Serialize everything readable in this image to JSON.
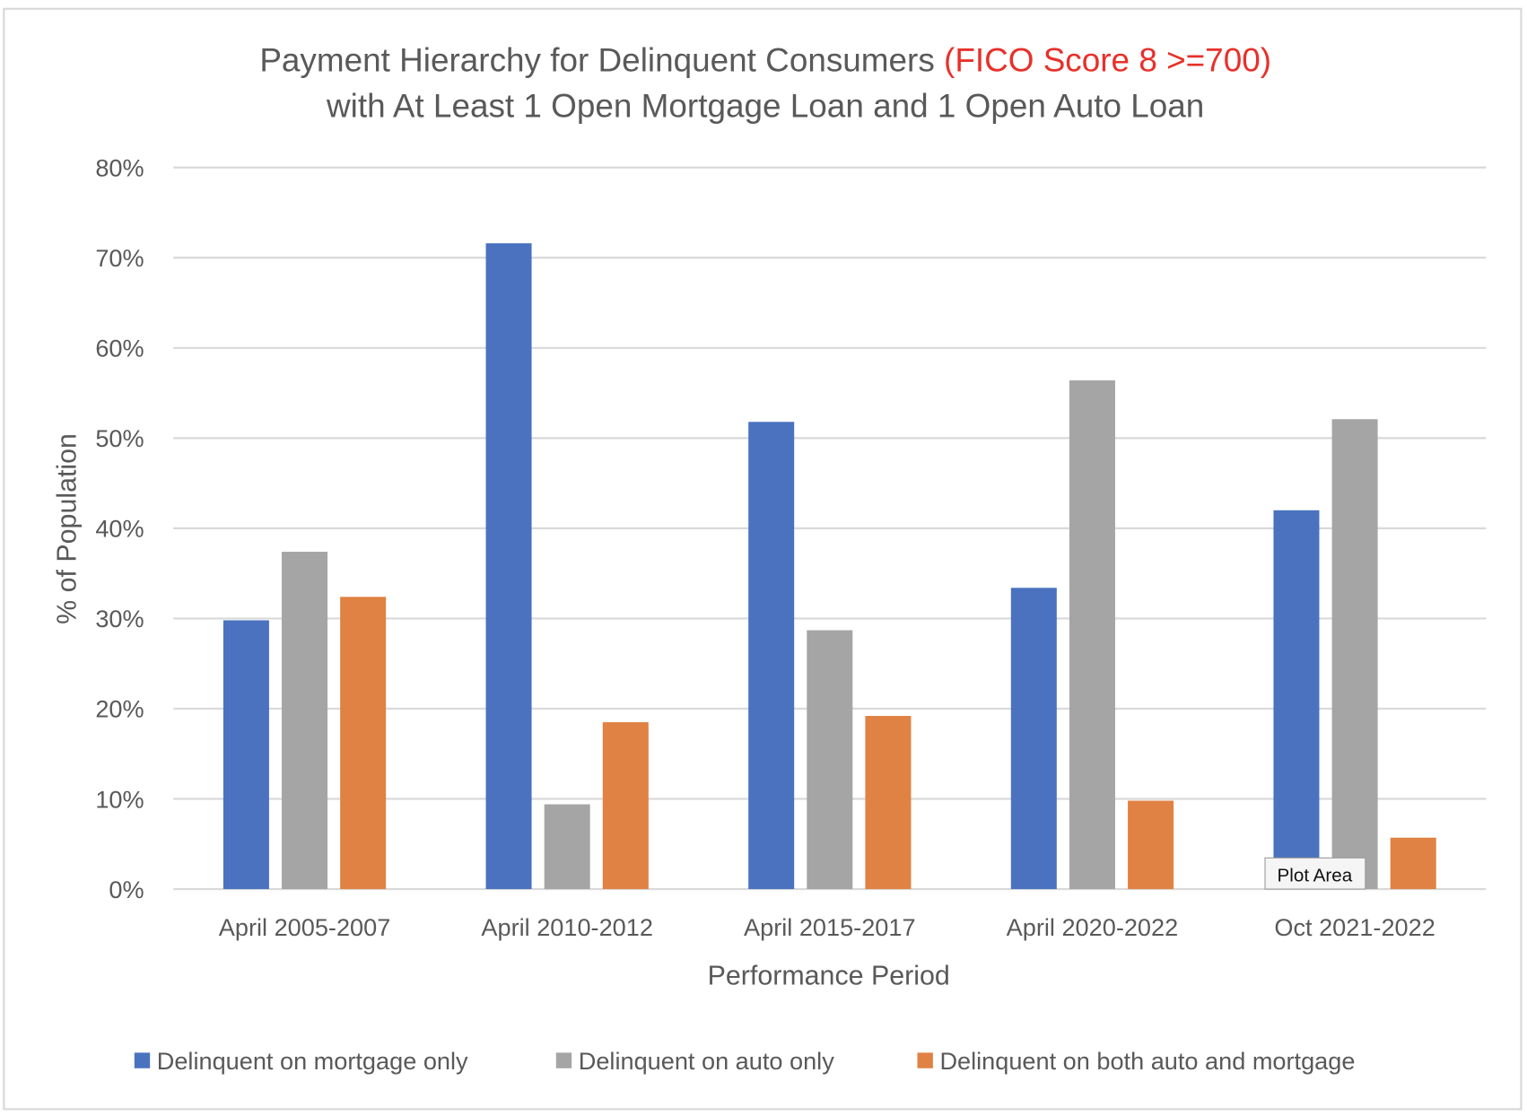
{
  "chart_data": {
    "type": "bar",
    "title_part1": "Payment Hierarchy for Delinquent Consumers ",
    "title_highlight": "(FICO Score 8 >=700)",
    "title_line2": "with At Least 1 Open Mortgage Loan and 1 Open Auto Loan",
    "xlabel": "Performance Period",
    "ylabel": "% of Population",
    "ylim": [
      0,
      80
    ],
    "yticks": [
      "0%",
      "10%",
      "20%",
      "30%",
      "40%",
      "50%",
      "60%",
      "70%",
      "80%"
    ],
    "grid": true,
    "legend_position": "bottom",
    "categories": [
      "April 2005-2007",
      "April 2010-2012",
      "April 2015-2017",
      "April 2020-2022",
      "Oct 2021-2022"
    ],
    "series": [
      {
        "name": "Delinquent on mortgage only",
        "color": "#4a72bf",
        "values": [
          29.8,
          71.6,
          51.8,
          33.4,
          42.0
        ]
      },
      {
        "name": "Delinquent on auto only",
        "color": "#a5a5a5",
        "values": [
          37.4,
          9.4,
          28.7,
          56.4,
          52.1
        ]
      },
      {
        "name": "Delinquent on both auto and mortgage",
        "color": "#e08243",
        "values": [
          32.4,
          18.5,
          19.2,
          9.8,
          5.7
        ]
      }
    ],
    "title_highlight_color": "#e8302a",
    "tooltip": "Plot Area"
  }
}
